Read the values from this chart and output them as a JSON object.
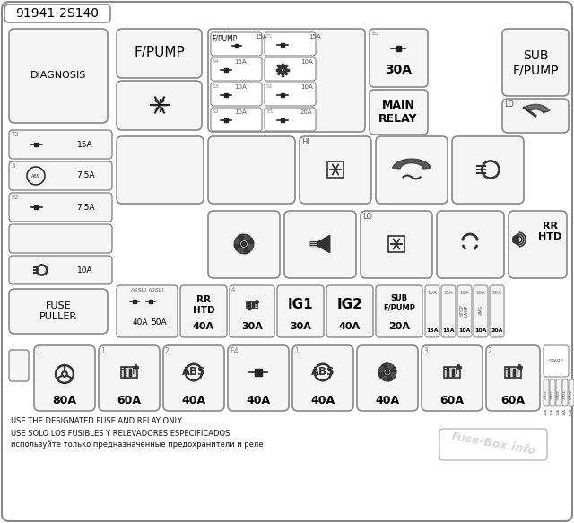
{
  "title": "91941-2S140",
  "bg_color": "#ffffff",
  "watermark": "Fuse-Box.info",
  "footer_lines": [
    "USE THE DESIGNATED FUSE AND RELAY ONLY",
    "USE SOLO LOS FUSIBLES Y RELEVADORES ESPECIFICADOS",
    "используйте только предназначенные предохранители и реле"
  ]
}
